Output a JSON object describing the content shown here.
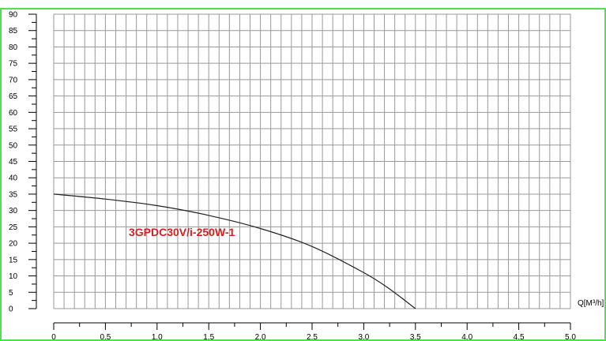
{
  "chart_data": {
    "type": "line",
    "title": "",
    "xlabel": "Q[M³/h]",
    "ylabel": "",
    "xlim": [
      0,
      5.0
    ],
    "ylim": [
      0,
      90
    ],
    "grid": true,
    "x_ticks": [
      "0",
      "0.5",
      "1.0",
      "1.5",
      "2.0",
      "2.5",
      "3.0",
      "3.5",
      "4.0",
      "4.5",
      "5.0"
    ],
    "y_ticks": [
      "0",
      "5",
      "10",
      "15",
      "20",
      "25",
      "30",
      "35",
      "40",
      "45",
      "50",
      "55",
      "60",
      "65",
      "70",
      "75",
      "80",
      "85",
      "90"
    ],
    "series": [
      {
        "name": "3GPDC30V/i-250W-1",
        "color": "#222222",
        "label_color": "#d42020",
        "x": [
          0,
          0.5,
          1.0,
          1.5,
          2.0,
          2.5,
          3.0,
          3.25,
          3.5
        ],
        "y": [
          35,
          33.5,
          31.5,
          28.5,
          24.5,
          19,
          11,
          6,
          0
        ]
      }
    ],
    "colors": {
      "frame": "#55dd55",
      "grid": "#999999",
      "axis": "#000000"
    }
  }
}
